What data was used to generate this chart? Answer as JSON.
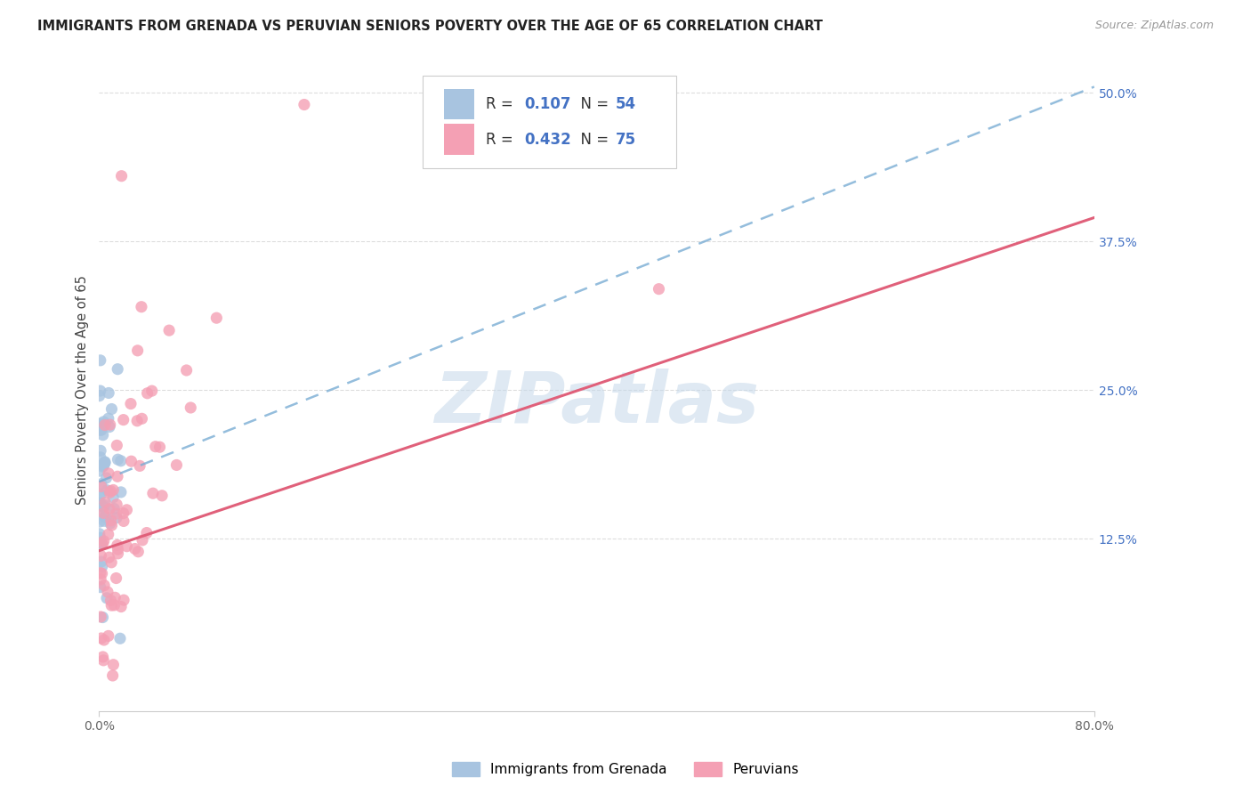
{
  "title": "IMMIGRANTS FROM GRENADA VS PERUVIAN SENIORS POVERTY OVER THE AGE OF 65 CORRELATION CHART",
  "source": "Source: ZipAtlas.com",
  "ylabel": "Seniors Poverty Over the Age of 65",
  "xlim": [
    0.0,
    0.8
  ],
  "ylim": [
    -0.02,
    0.52
  ],
  "ytick_labels_right": [
    "12.5%",
    "25.0%",
    "37.5%",
    "50.0%"
  ],
  "ytick_vals": [
    0.125,
    0.25,
    0.375,
    0.5
  ],
  "watermark": "ZIPatlas",
  "legend_labels": [
    "Immigrants from Grenada",
    "Peruvians"
  ],
  "series1_color": "#a8c4e0",
  "series1_line_color": "#7aadd4",
  "series2_color": "#f4a0b4",
  "series2_line_color": "#e0607a",
  "series1_label": "Immigrants from Grenada",
  "series2_label": "Peruvians",
  "series1_R": 0.107,
  "series1_N": 54,
  "series2_R": 0.432,
  "series2_N": 75,
  "background_color": "#ffffff",
  "grid_color": "#dddddd",
  "title_color": "#222222",
  "source_color": "#999999",
  "axis_label_color": "#444444",
  "tick_color_right": "#4472c4",
  "legend_R_color": "#4472c4",
  "legend_N_color": "#4472c4",
  "blue_line_x0": 0.0,
  "blue_line_y0": 0.173,
  "blue_line_x1": 0.8,
  "blue_line_y1": 0.505,
  "pink_line_x0": 0.0,
  "pink_line_y0": 0.115,
  "pink_line_x1": 0.8,
  "pink_line_y1": 0.395
}
